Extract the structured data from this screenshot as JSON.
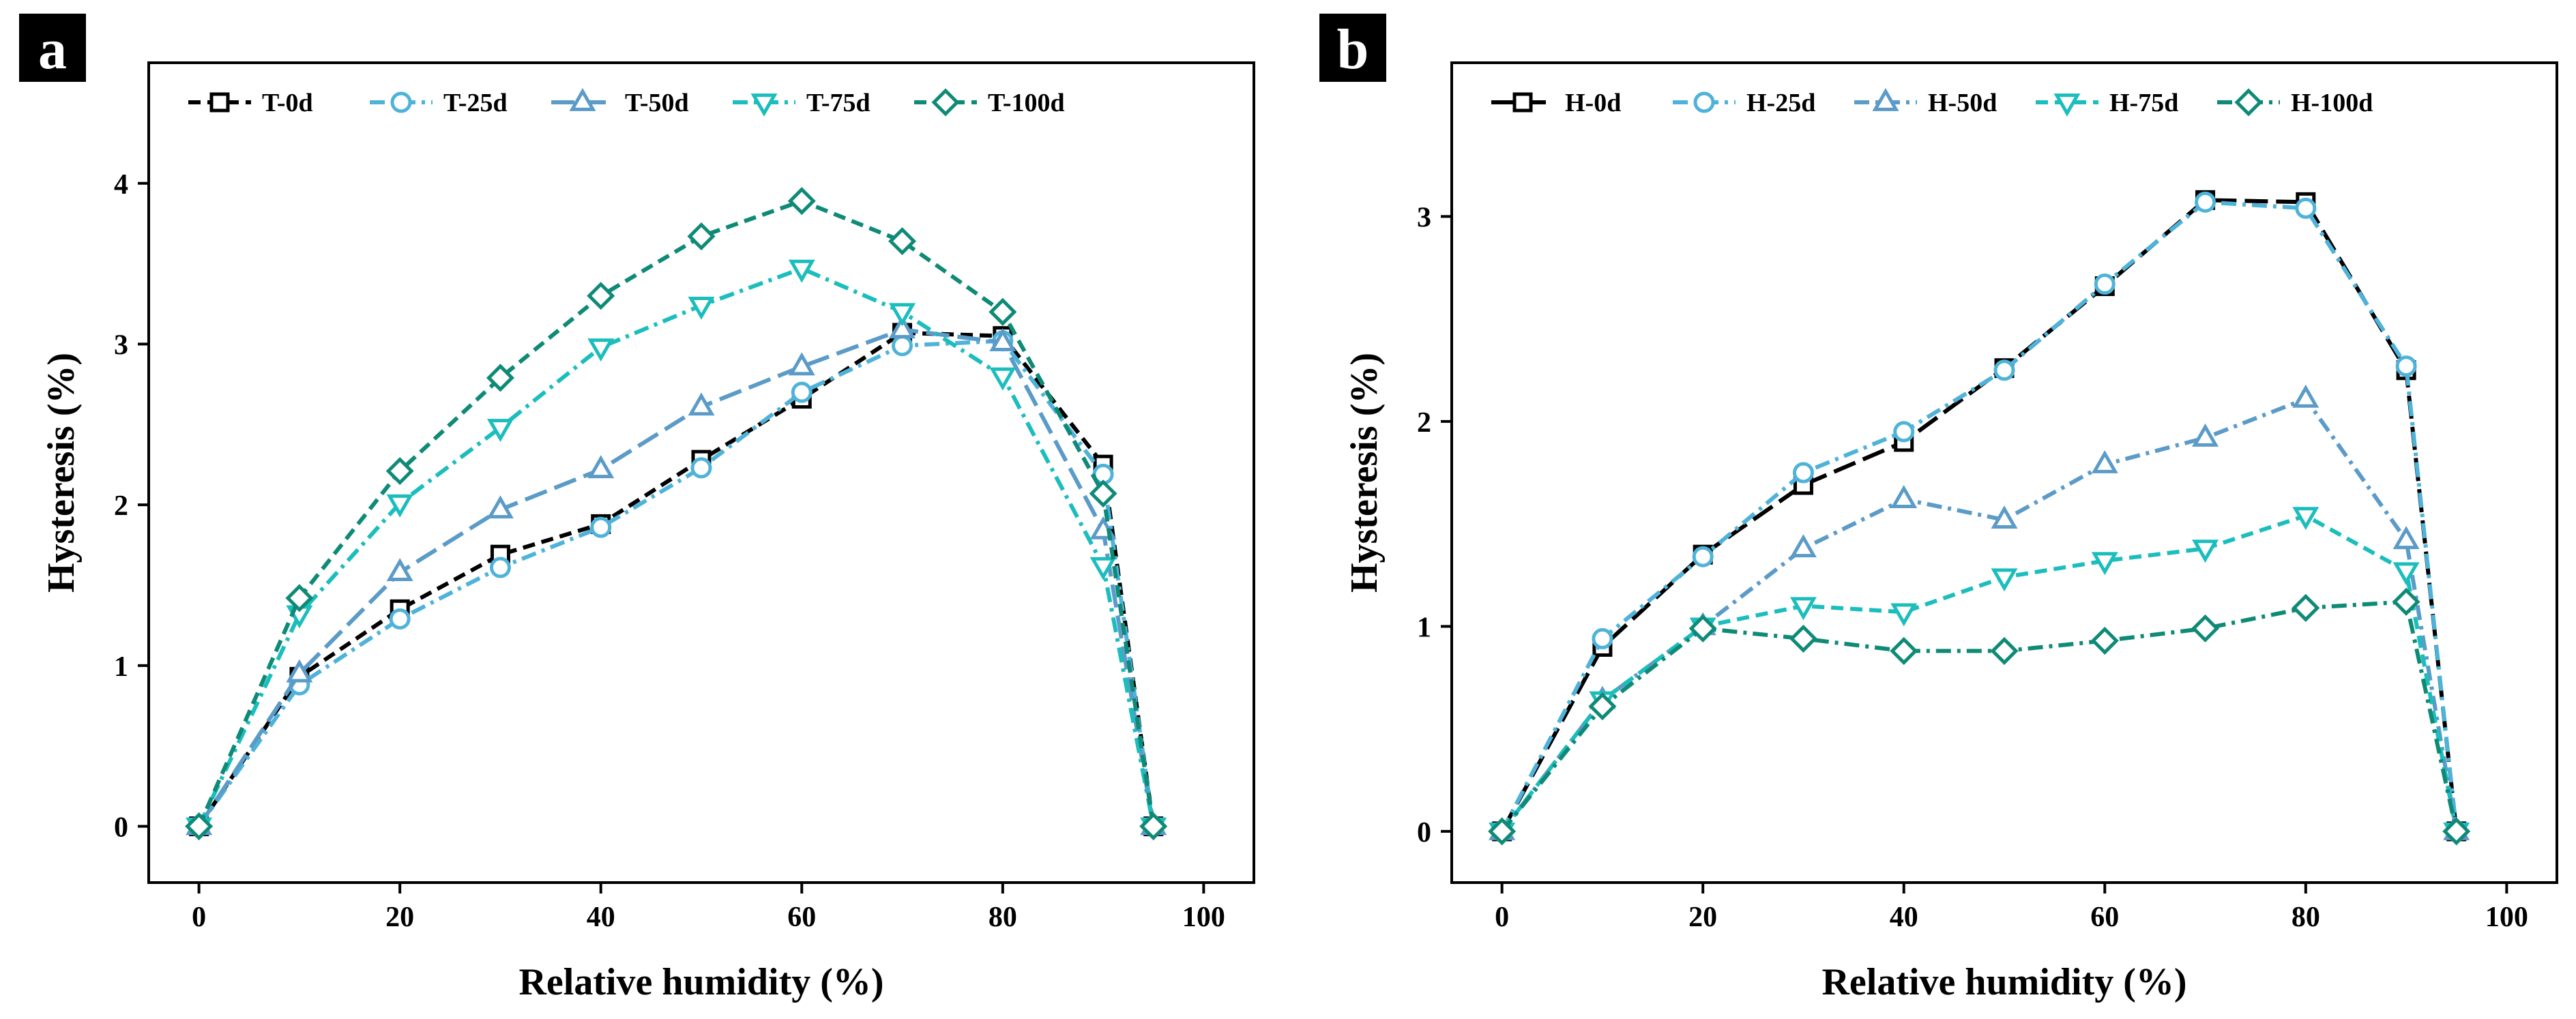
{
  "chart_data": [
    {
      "type": "line",
      "panel_label": "a",
      "xlabel": "Relative humidity (%)",
      "ylabel": "Hysteresis (%)",
      "xlim": [
        -5,
        105
      ],
      "ylim": [
        -0.35,
        4.75
      ],
      "xticks": [
        0,
        20,
        40,
        60,
        80,
        100
      ],
      "yticks": [
        0,
        1,
        2,
        3,
        4
      ],
      "legend_position": "top",
      "series": [
        {
          "name": "T-0d",
          "color": "#000000",
          "marker": "square",
          "dash": "dash",
          "x": [
            0,
            10,
            20,
            30,
            40,
            50,
            60,
            70,
            80,
            90,
            95
          ],
          "y": [
            0,
            0.93,
            1.35,
            1.69,
            1.88,
            2.28,
            2.66,
            3.07,
            3.05,
            2.25,
            0
          ]
        },
        {
          "name": "T-25d",
          "color": "#4FB3D9",
          "marker": "circle",
          "dash": "dashdot",
          "x": [
            0,
            10,
            20,
            30,
            40,
            50,
            60,
            70,
            80,
            90,
            95
          ],
          "y": [
            0,
            0.88,
            1.29,
            1.61,
            1.86,
            2.23,
            2.7,
            2.99,
            3.02,
            2.19,
            0
          ]
        },
        {
          "name": "T-50d",
          "color": "#5B9BC8",
          "marker": "triangle-up",
          "dash": "longdash",
          "x": [
            0,
            10,
            20,
            30,
            40,
            50,
            60,
            70,
            80,
            90,
            95
          ],
          "y": [
            0,
            0.95,
            1.58,
            1.97,
            2.22,
            2.61,
            2.86,
            3.09,
            3.01,
            1.84,
            0
          ]
        },
        {
          "name": "T-75d",
          "color": "#1CBDBD",
          "marker": "triangle-down",
          "dash": "dashdot",
          "x": [
            0,
            10,
            20,
            30,
            40,
            50,
            60,
            70,
            80,
            90,
            95
          ],
          "y": [
            0,
            1.32,
            2.01,
            2.48,
            2.98,
            3.24,
            3.47,
            3.2,
            2.8,
            1.62,
            0
          ]
        },
        {
          "name": "T-100d",
          "color": "#0E8A76",
          "marker": "diamond",
          "dash": "dash",
          "x": [
            0,
            10,
            20,
            30,
            40,
            50,
            60,
            70,
            80,
            90,
            95
          ],
          "y": [
            0,
            1.42,
            2.21,
            2.79,
            3.3,
            3.67,
            3.89,
            3.64,
            3.2,
            2.07,
            0
          ]
        }
      ]
    },
    {
      "type": "line",
      "panel_label": "b",
      "xlabel": "Relative humidity (%)",
      "ylabel": "Hysteresis (%)",
      "xlim": [
        -5,
        105
      ],
      "ylim": [
        -0.25,
        3.75
      ],
      "xticks": [
        0,
        20,
        40,
        60,
        80,
        100
      ],
      "yticks": [
        0,
        1,
        2,
        3
      ],
      "legend_position": "top",
      "series": [
        {
          "name": "H-0d",
          "color": "#000000",
          "marker": "square",
          "dash": "longdash",
          "x": [
            0,
            10,
            20,
            30,
            40,
            50,
            60,
            70,
            80,
            90,
            95
          ],
          "y": [
            0,
            0.9,
            1.35,
            1.69,
            1.9,
            2.26,
            2.66,
            3.08,
            3.07,
            2.25,
            0
          ]
        },
        {
          "name": "H-25d",
          "color": "#4FB3D9",
          "marker": "circle",
          "dash": "dashdot",
          "x": [
            0,
            10,
            20,
            30,
            40,
            50,
            60,
            70,
            80,
            90,
            95
          ],
          "y": [
            0,
            0.94,
            1.34,
            1.75,
            1.95,
            2.25,
            2.67,
            3.07,
            3.04,
            2.27,
            0
          ]
        },
        {
          "name": "H-50d",
          "color": "#5B9BC8",
          "marker": "triangle-up",
          "dash": "dashdot",
          "x": [
            0,
            10,
            20,
            30,
            40,
            50,
            60,
            70,
            80,
            90,
            95
          ],
          "y": [
            0,
            0.64,
            1.0,
            1.38,
            1.62,
            1.52,
            1.79,
            1.92,
            2.11,
            1.42,
            0
          ]
        },
        {
          "name": "H-75d",
          "color": "#1CBDBD",
          "marker": "triangle-down",
          "dash": "dash",
          "x": [
            0,
            10,
            20,
            30,
            40,
            50,
            60,
            70,
            80,
            90,
            95
          ],
          "y": [
            0,
            0.64,
            1.0,
            1.1,
            1.07,
            1.24,
            1.32,
            1.38,
            1.54,
            1.27,
            0
          ]
        },
        {
          "name": "H-100d",
          "color": "#0E8A76",
          "marker": "diamond",
          "dash": "dashdot",
          "x": [
            0,
            10,
            20,
            30,
            40,
            50,
            60,
            70,
            80,
            90,
            95
          ],
          "y": [
            0,
            0.61,
            0.99,
            0.94,
            0.88,
            0.88,
            0.93,
            0.99,
            1.09,
            1.12,
            0
          ]
        }
      ]
    }
  ]
}
